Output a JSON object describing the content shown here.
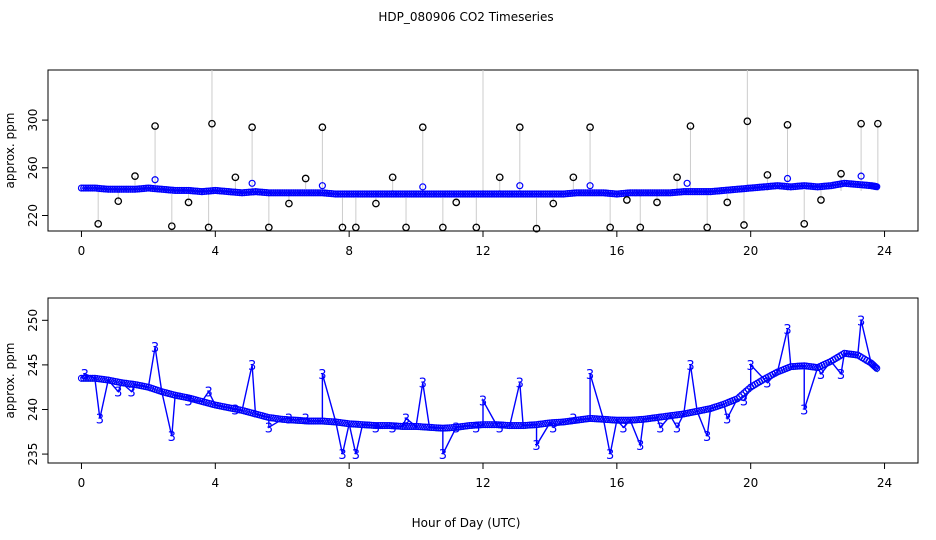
{
  "title": "HDP_080906  CO2 Timeseries",
  "xlabel": "Hour of Day (UTC)",
  "chart_data": [
    {
      "type": "scatter",
      "panel": "top",
      "ylabel": "approx. ppm",
      "xlim": [
        -1,
        25
      ],
      "ylim": [
        207,
        342
      ],
      "xticks": [
        "0",
        "4",
        "8",
        "12",
        "16",
        "20",
        "24"
      ],
      "yticks": [
        "220",
        "260",
        "300"
      ],
      "series": [
        {
          "name": "raw (black)",
          "color": "#000000",
          "x": [
            0.5,
            1.1,
            1.6,
            2.2,
            2.7,
            3.2,
            3.8,
            3.9,
            4.6,
            5.1,
            5.6,
            6.2,
            6.7,
            7.2,
            7.8,
            8.2,
            8.8,
            9.3,
            9.7,
            10.2,
            10.8,
            11.2,
            11.8,
            12.5,
            13.1,
            13.6,
            14.1,
            14.7,
            15.2,
            15.8,
            16.3,
            16.7,
            17.2,
            17.8,
            18.2,
            18.7,
            19.3,
            19.8,
            19.9,
            20.5,
            21.1,
            21.6,
            22.1,
            22.7,
            23.3,
            23.8
          ],
          "y": [
            213,
            232,
            253,
            295,
            211,
            231,
            210,
            297,
            252,
            294,
            210,
            230,
            251,
            294,
            210,
            210,
            230,
            252,
            210,
            294,
            210,
            231,
            210,
            252,
            294,
            209,
            230,
            252,
            294,
            210,
            233,
            210,
            231,
            252,
            295,
            210,
            231,
            212,
            299,
            254,
            296,
            213,
            233,
            255,
            297,
            297
          ]
        },
        {
          "name": "spikes (grey)",
          "color": "#aaaaaa",
          "x": [
            3.9,
            12.0,
            19.9
          ],
          "y": [
            342,
            342,
            342
          ]
        }
      ],
      "line": {
        "name": "smoothed (blue)",
        "color": "#0000ff",
        "x": [
          0.0,
          0.4,
          0.8,
          1.2,
          1.6,
          2.0,
          2.4,
          2.8,
          3.2,
          3.6,
          4.0,
          4.4,
          4.8,
          5.2,
          5.6,
          6.0,
          6.4,
          6.8,
          7.2,
          7.6,
          8.0,
          8.4,
          8.8,
          9.2,
          9.6,
          10.0,
          10.4,
          10.8,
          11.2,
          11.6,
          12.0,
          12.4,
          12.8,
          13.2,
          13.6,
          14.0,
          14.4,
          14.8,
          15.2,
          15.6,
          16.0,
          16.4,
          16.8,
          17.2,
          17.6,
          18.0,
          18.4,
          18.8,
          19.2,
          19.6,
          20.0,
          20.4,
          20.8,
          21.2,
          21.6,
          22.0,
          22.4,
          22.8,
          23.2,
          23.6,
          23.8
        ],
        "y": [
          243,
          243,
          242,
          242,
          242,
          243,
          242,
          241,
          241,
          240,
          241,
          240,
          239,
          240,
          239,
          239,
          239,
          239,
          239,
          238,
          238,
          238,
          238,
          238,
          238,
          238,
          238,
          238,
          238,
          238,
          238,
          238,
          238,
          238,
          238,
          238,
          238,
          239,
          239,
          239,
          238,
          239,
          239,
          239,
          239,
          240,
          240,
          240,
          241,
          242,
          243,
          244,
          245,
          244,
          245,
          244,
          245,
          247,
          246,
          245,
          244
        ]
      }
    },
    {
      "type": "scatter",
      "panel": "bottom",
      "ylabel": "approx. ppm",
      "xlim": [
        -1,
        25
      ],
      "ylim": [
        234,
        252.5
      ],
      "xticks": [
        "0",
        "4",
        "8",
        "12",
        "16",
        "20",
        "24"
      ],
      "yticks": [
        "235",
        "240",
        "245",
        "250"
      ],
      "label_glyph": "3",
      "series": [
        {
          "name": "3-labels (blue)",
          "color": "#0000ff",
          "x": [
            0.1,
            0.55,
            1.1,
            1.5,
            2.2,
            2.7,
            3.2,
            3.8,
            4.6,
            5.1,
            5.6,
            6.2,
            6.7,
            7.2,
            7.8,
            8.2,
            8.8,
            9.3,
            9.7,
            10.2,
            10.8,
            11.2,
            11.8,
            12.0,
            12.5,
            13.1,
            13.6,
            14.1,
            14.7,
            15.2,
            15.8,
            16.2,
            16.7,
            17.3,
            17.8,
            18.2,
            18.7,
            19.3,
            19.8,
            20.0,
            20.5,
            21.1,
            21.6,
            22.1,
            22.7,
            23.3
          ],
          "y": [
            244,
            239,
            242,
            242,
            247,
            237,
            241,
            242,
            240,
            245,
            238,
            239,
            239,
            244,
            235,
            235,
            238,
            238,
            239,
            243,
            235,
            238,
            238,
            241,
            238,
            243,
            236,
            238,
            239,
            244,
            235,
            238,
            236,
            238,
            238,
            245,
            237,
            239,
            241,
            245,
            243,
            249,
            240,
            244,
            244,
            250
          ]
        }
      ],
      "line": {
        "name": "smoothed (blue/green)",
        "color": "#0000ff",
        "x": [
          0.0,
          0.4,
          0.8,
          1.2,
          1.6,
          2.0,
          2.4,
          2.8,
          3.2,
          3.6,
          4.0,
          4.4,
          4.8,
          5.2,
          5.6,
          6.0,
          6.4,
          6.8,
          7.2,
          7.6,
          8.0,
          8.4,
          8.8,
          9.2,
          9.6,
          10.0,
          10.4,
          10.8,
          11.2,
          11.6,
          12.0,
          12.4,
          12.8,
          13.2,
          13.6,
          14.0,
          14.4,
          14.8,
          15.2,
          15.6,
          16.0,
          16.4,
          16.8,
          17.2,
          17.6,
          18.0,
          18.4,
          18.8,
          19.2,
          19.6,
          20.0,
          20.4,
          20.8,
          21.2,
          21.6,
          22.0,
          22.4,
          22.8,
          23.2,
          23.6,
          23.8
        ],
        "y": [
          243.5,
          243.5,
          243.3,
          243.0,
          242.8,
          242.5,
          242.0,
          241.6,
          241.3,
          240.9,
          240.5,
          240.2,
          239.9,
          239.5,
          239.1,
          238.9,
          238.8,
          238.7,
          238.7,
          238.6,
          238.4,
          238.3,
          238.2,
          238.2,
          238.1,
          238.1,
          238.0,
          237.9,
          238.0,
          238.2,
          238.3,
          238.3,
          238.2,
          238.2,
          238.3,
          238.5,
          238.6,
          238.8,
          239.0,
          238.9,
          238.8,
          238.8,
          238.9,
          239.1,
          239.3,
          239.5,
          239.8,
          240.1,
          240.6,
          241.2,
          242.5,
          243.4,
          244.2,
          244.8,
          244.9,
          244.7,
          245.4,
          246.3,
          246.1,
          245.2,
          244.5
        ]
      }
    }
  ]
}
